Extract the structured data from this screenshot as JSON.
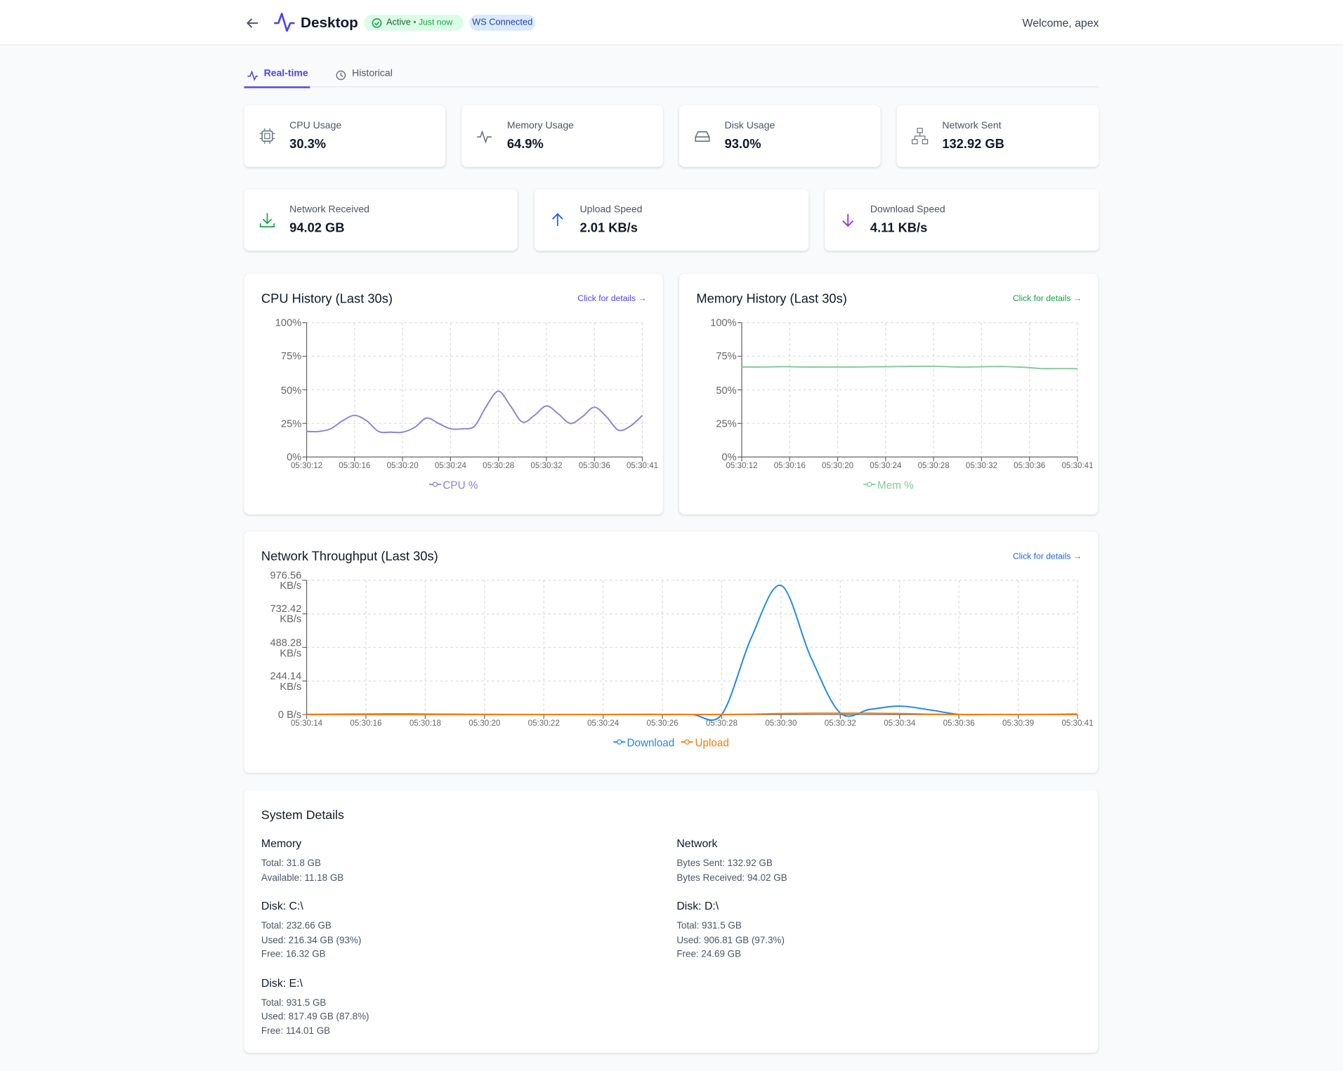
{
  "header": {
    "title": "Desktop",
    "status": "Active",
    "status_time": "• Just now",
    "ws": "WS Connected",
    "welcome": "Welcome, apex"
  },
  "tabs": [
    "Real-time",
    "Historical"
  ],
  "stats": [
    {
      "label": "CPU Usage",
      "value": "30.3%"
    },
    {
      "label": "Memory Usage",
      "value": "64.9%"
    },
    {
      "label": "Disk Usage",
      "value": "93.0%"
    },
    {
      "label": "Network Sent",
      "value": "132.92 GB"
    },
    {
      "label": "Network Received",
      "value": "94.02 GB"
    },
    {
      "label": "Upload Speed",
      "value": "2.01 KB/s"
    },
    {
      "label": "Download Speed",
      "value": "4.11 KB/s"
    }
  ],
  "charts": [
    {
      "type": "line",
      "title": "CPU History (Last 30s)",
      "link": "Click for details →",
      "categories": [
        "05:30:12",
        null,
        null,
        null,
        "05:30:16",
        null,
        null,
        null,
        "05:30:20",
        null,
        null,
        null,
        "05:30:24",
        null,
        null,
        null,
        "05:30:28",
        null,
        null,
        null,
        "05:30:32",
        null,
        null,
        null,
        "05:30:36",
        null,
        null,
        null,
        "05:30:41"
      ],
      "series": [
        {
          "name": "CPU %",
          "color": "#8884d8",
          "values": [
            19,
            19,
            21,
            27,
            31,
            27,
            19,
            18.5,
            18.5,
            22,
            29,
            25,
            21,
            21,
            23,
            38,
            49,
            38,
            26,
            31,
            38,
            32,
            25,
            30,
            37,
            30,
            20,
            23,
            31
          ]
        }
      ],
      "ylim": [
        0,
        100
      ],
      "yticks": [
        {
          "value": 0,
          "label": "0%"
        },
        {
          "value": 25,
          "label": "25%"
        },
        {
          "value": 50,
          "label": "50%"
        },
        {
          "value": 75,
          "label": "75%"
        },
        {
          "value": 100,
          "label": "100%"
        }
      ],
      "grid": true
    },
    {
      "type": "line",
      "title": "Memory History (Last 30s)",
      "link": "Click for details →",
      "categories": [
        "05:30:12",
        null,
        null,
        null,
        "05:30:16",
        null,
        null,
        null,
        "05:30:20",
        null,
        null,
        null,
        "05:30:24",
        null,
        null,
        null,
        "05:30:28",
        null,
        null,
        null,
        "05:30:32",
        null,
        null,
        null,
        "05:30:36",
        null,
        null,
        null,
        "05:30:41"
      ],
      "series": [
        {
          "name": "Mem %",
          "color": "#82ca9d",
          "values": [
            67,
            67,
            67,
            67.2,
            67.2,
            67,
            67,
            67,
            67,
            67,
            67,
            67.2,
            67.2,
            67.3,
            67.4,
            67.5,
            67.5,
            67.3,
            67,
            67,
            67.2,
            67.3,
            67.3,
            67,
            66.5,
            65.8,
            65.8,
            65.8,
            65.7
          ]
        }
      ],
      "ylim": [
        0,
        100
      ],
      "yticks": [
        {
          "value": 0,
          "label": "0%"
        },
        {
          "value": 25,
          "label": "25%"
        },
        {
          "value": 50,
          "label": "50%"
        },
        {
          "value": 75,
          "label": "75%"
        },
        {
          "value": 100,
          "label": "100%"
        }
      ],
      "grid": true
    },
    {
      "type": "line",
      "title": "Network Throughput (Last 30s)",
      "link": "Click for details →",
      "categories": [
        "05:30:14",
        null,
        "05:30:16",
        null,
        "05:30:18",
        null,
        "05:30:20",
        null,
        "05:30:22",
        null,
        "05:30:24",
        null,
        "05:30:26",
        null,
        "05:30:28",
        null,
        "05:30:30",
        null,
        "05:30:32",
        null,
        "05:30:34",
        null,
        "05:30:36",
        null,
        "05:30:39",
        null,
        "05:30:41"
      ],
      "series": [
        {
          "name": "Download",
          "color": "#1e88e5",
          "values": [
            2,
            3,
            4,
            5,
            4,
            3,
            2,
            1,
            1,
            1,
            1,
            2,
            2,
            1,
            1,
            560,
            939,
            420,
            12,
            38,
            62,
            35,
            2,
            1,
            1,
            2,
            4
          ]
        },
        {
          "name": "Upload",
          "color": "#f57c00",
          "values": [
            1,
            1,
            1,
            1,
            1,
            1,
            1,
            1,
            1,
            1,
            1,
            1,
            1,
            1,
            1,
            3,
            8,
            10,
            10,
            10,
            8,
            3,
            1,
            1,
            1,
            1,
            1
          ]
        }
      ],
      "ylim": [
        0,
        976.56
      ],
      "yticks": [
        {
          "value": 0,
          "label": "0 B/s"
        },
        {
          "value": 244.14,
          "label": "244.14 KB/s"
        },
        {
          "value": 488.28,
          "label": "488.28 KB/s"
        },
        {
          "value": 732.42,
          "label": "732.42 KB/s"
        },
        {
          "value": 976.56,
          "label": "976.56 KB/s"
        }
      ],
      "grid": true
    }
  ],
  "system_details": {
    "title": "System Details",
    "sections": [
      {
        "title": "Memory",
        "lines": [
          "Total: 31.8 GB",
          "Available: 11.18 GB"
        ]
      },
      {
        "title": "Network",
        "lines": [
          "Bytes Sent: 132.92 GB",
          "Bytes Received: 94.02 GB"
        ]
      },
      {
        "title": "Disk: C:\\",
        "lines": [
          "Total: 232.66 GB",
          "Used: 216.34 GB (93%)",
          "Free: 16.32 GB"
        ]
      },
      {
        "title": "Disk: D:\\",
        "lines": [
          "Total: 931.5 GB",
          "Used: 906.81 GB (97.3%)",
          "Free: 24.69 GB"
        ]
      },
      {
        "title": "Disk: E:\\",
        "lines": [
          "Total: 931.5 GB",
          "Used: 817.49 GB (87.8%)",
          "Free: 114.01 GB"
        ]
      }
    ]
  }
}
